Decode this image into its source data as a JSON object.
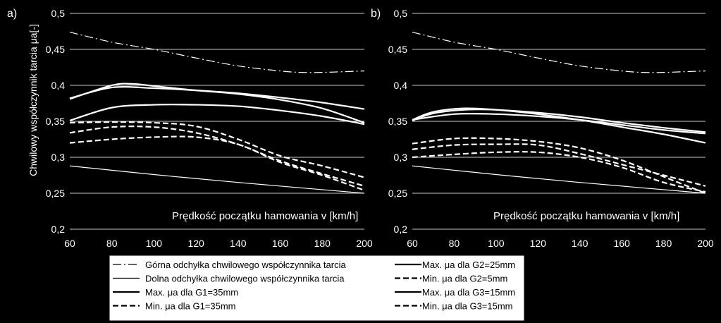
{
  "chart_data": [
    {
      "type": "line",
      "panel_label": "a)",
      "ylabel": "Chwilowy współczynnik tarcia μa[-]",
      "xlabel": "Prędkość  początku hamowania v [km/h]",
      "xlim": [
        60,
        200
      ],
      "ylim": [
        0.2,
        0.5
      ],
      "x_ticks": [
        60,
        80,
        100,
        120,
        140,
        160,
        180,
        200
      ],
      "x_tick_labels": [
        "60",
        "80",
        "100",
        "120",
        "140",
        "160",
        "180",
        "200"
      ],
      "y_ticks": [
        0.2,
        0.25,
        0.3,
        0.35,
        0.4,
        0.45,
        0.5
      ],
      "y_tick_labels": [
        "0,2",
        "0,25",
        "0,3",
        "0,35",
        "0,4",
        "0,45",
        "0,5"
      ],
      "grid": "horizontal",
      "series": [
        {
          "name": "Górna odchyłka chwilowego współczynnika tarcia",
          "style": "dashdot",
          "x": [
            60,
            80,
            100,
            120,
            140,
            160,
            170,
            180,
            200
          ],
          "y": [
            0.474,
            0.46,
            0.45,
            0.438,
            0.427,
            0.42,
            0.418,
            0.418,
            0.42
          ]
        },
        {
          "name": "Dolna odchyłka chwilowego współczynnika tarcia",
          "style": "thin",
          "x": [
            60,
            100,
            140,
            200
          ],
          "y": [
            0.288,
            0.276,
            0.265,
            0.25
          ]
        },
        {
          "name": "Max. μa dla G1=35mm",
          "style": "solid",
          "x": [
            60,
            80,
            100,
            120,
            140,
            160,
            180,
            200
          ],
          "y": [
            0.382,
            0.397,
            0.396,
            0.393,
            0.389,
            0.383,
            0.376,
            0.367
          ]
        },
        {
          "name": "Max. μa dla G1=35mm",
          "style": "solid",
          "x": [
            60,
            80,
            90,
            100,
            120,
            140,
            160,
            180,
            200
          ],
          "y": [
            0.381,
            0.4,
            0.402,
            0.399,
            0.393,
            0.388,
            0.38,
            0.368,
            0.348
          ]
        },
        {
          "name": "Max. μa dla G1=35mm",
          "style": "solid",
          "x": [
            60,
            80,
            100,
            120,
            140,
            160,
            180,
            200
          ],
          "y": [
            0.351,
            0.369,
            0.373,
            0.373,
            0.371,
            0.365,
            0.357,
            0.346
          ]
        },
        {
          "name": "Min. μa dla G1=35mm",
          "style": "dashed",
          "x": [
            60,
            80,
            100,
            120,
            140,
            160,
            180,
            200
          ],
          "y": [
            0.348,
            0.349,
            0.348,
            0.343,
            0.325,
            0.302,
            0.288,
            0.272
          ]
        },
        {
          "name": "Min. μa dla G1=35mm",
          "style": "dashed",
          "x": [
            60,
            80,
            100,
            120,
            140,
            160,
            180,
            200
          ],
          "y": [
            0.334,
            0.342,
            0.342,
            0.334,
            0.318,
            0.295,
            0.277,
            0.26
          ]
        },
        {
          "name": "Min. μa dla G1=35mm",
          "style": "dashed",
          "x": [
            60,
            80,
            100,
            120,
            140,
            160,
            180,
            200
          ],
          "y": [
            0.32,
            0.325,
            0.328,
            0.328,
            0.318,
            0.293,
            0.275,
            0.254
          ]
        }
      ]
    },
    {
      "type": "line",
      "panel_label": "b)",
      "ylabel": "",
      "xlabel": "Prędkość  początku hamowania v [km/h]",
      "xlim": [
        60,
        200
      ],
      "ylim": [
        0.2,
        0.5
      ],
      "x_ticks": [
        60,
        80,
        100,
        120,
        140,
        160,
        180,
        200
      ],
      "x_tick_labels": [
        "60",
        "80",
        "100",
        "120",
        "140",
        "160",
        "180",
        "200"
      ],
      "y_ticks": [
        0.2,
        0.25,
        0.3,
        0.35,
        0.4,
        0.45,
        0.5
      ],
      "y_tick_labels": [
        "0,2",
        "0,25",
        "0,3",
        "0,35",
        "0,4",
        "0,45",
        "0,5"
      ],
      "grid": "horizontal",
      "series": [
        {
          "name": "Górna odchyłka chwilowego współczynnika tarcia",
          "style": "dashdot",
          "x": [
            60,
            80,
            100,
            120,
            140,
            160,
            170,
            180,
            200
          ],
          "y": [
            0.474,
            0.46,
            0.45,
            0.438,
            0.427,
            0.42,
            0.418,
            0.418,
            0.42
          ]
        },
        {
          "name": "Dolna odchyłka chwilowego współczynnika tarcia",
          "style": "thin",
          "x": [
            60,
            100,
            140,
            200
          ],
          "y": [
            0.288,
            0.276,
            0.265,
            0.25
          ]
        },
        {
          "name": "Max. μa dla G2=25mm",
          "style": "solid",
          "x": [
            60,
            70,
            85,
            100,
            120,
            140,
            160,
            180,
            200
          ],
          "y": [
            0.352,
            0.363,
            0.368,
            0.366,
            0.36,
            0.352,
            0.342,
            0.332,
            0.32
          ]
        },
        {
          "name": "Max. μa dla G3=15mm",
          "style": "solid",
          "x": [
            60,
            70,
            85,
            100,
            120,
            140,
            160,
            180,
            200
          ],
          "y": [
            0.351,
            0.361,
            0.366,
            0.366,
            0.362,
            0.356,
            0.348,
            0.341,
            0.335
          ]
        },
        {
          "name": "Max. μa dla G3=15mm",
          "style": "solid",
          "x": [
            60,
            80,
            100,
            120,
            140,
            160,
            180,
            200
          ],
          "y": [
            0.352,
            0.36,
            0.36,
            0.357,
            0.352,
            0.345,
            0.338,
            0.333
          ]
        },
        {
          "name": "Min. μa dla G2=5mm",
          "style": "dashed",
          "x": [
            60,
            80,
            100,
            120,
            140,
            160,
            180,
            200
          ],
          "y": [
            0.319,
            0.326,
            0.326,
            0.322,
            0.313,
            0.296,
            0.273,
            0.25
          ]
        },
        {
          "name": "Min. μa dla G2=5mm",
          "style": "dashed",
          "x": [
            60,
            80,
            100,
            120,
            140,
            160,
            180,
            200
          ],
          "y": [
            0.311,
            0.317,
            0.318,
            0.317,
            0.305,
            0.29,
            0.275,
            0.26
          ]
        },
        {
          "name": "Min. μa dla G3=15mm",
          "style": "dashed",
          "x": [
            60,
            80,
            100,
            120,
            140,
            160,
            180,
            200
          ],
          "y": [
            0.3,
            0.304,
            0.307,
            0.307,
            0.3,
            0.286,
            0.265,
            0.252
          ]
        }
      ]
    }
  ],
  "legend": {
    "left": [
      {
        "label": "Górna odchyłka chwilowego współczynnika tarcia",
        "style": "dashdot"
      },
      {
        "label": "Dolna odchyłka chwilowego współczynnika tarcia",
        "style": "thin"
      },
      {
        "label": "Max. μa dla G1=35mm",
        "style": "solid"
      },
      {
        "label": "Min. μa dla G1=35mm",
        "style": "dashed"
      }
    ],
    "right": [
      {
        "label": "Max. μa dla G2=25mm",
        "style": "solid"
      },
      {
        "label": "Min. μa dla G2=5mm",
        "style": "dashed"
      },
      {
        "label": "Max. μa dla G3=15mm",
        "style": "solid"
      },
      {
        "label": "Min. μa dla G3=15mm",
        "style": "dashed"
      }
    ]
  },
  "colors": {
    "background": "#000000",
    "lines": "#ffffff",
    "grid": "#c8c8c8",
    "legend_bg": "#ffffff",
    "legend_text": "#000000"
  }
}
